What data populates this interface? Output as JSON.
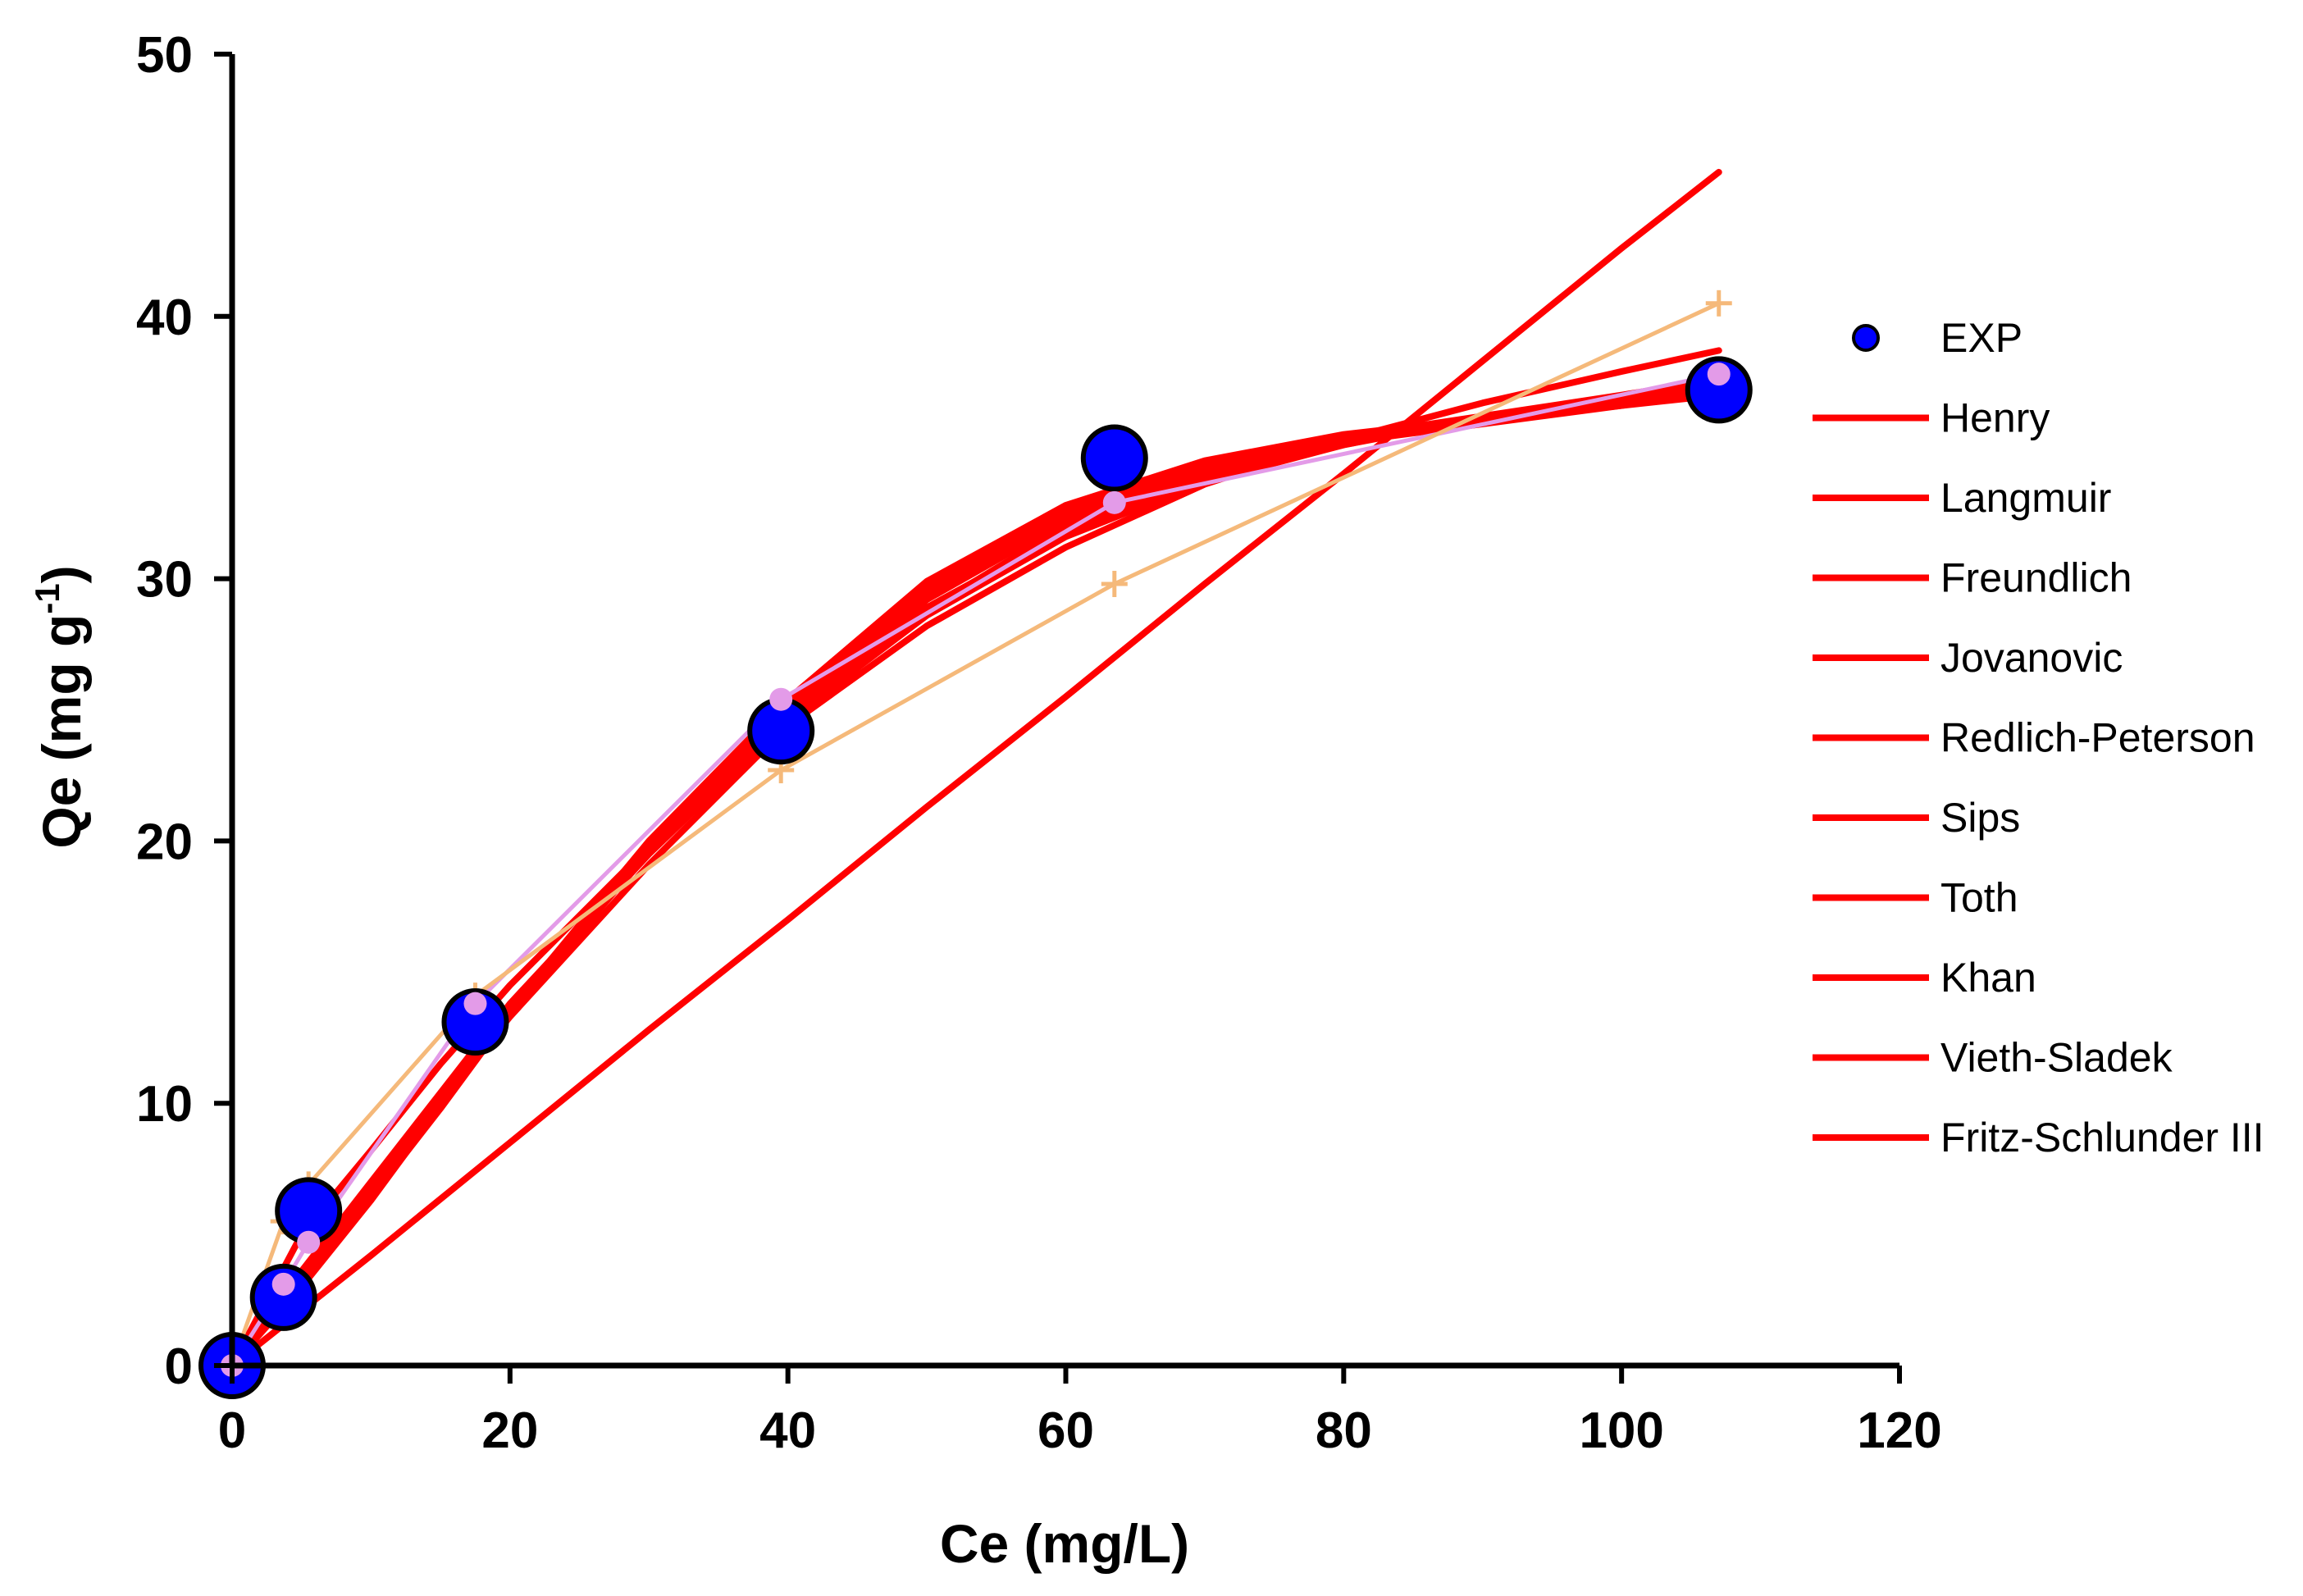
{
  "chart_data": {
    "type": "scatter",
    "title": "",
    "xlabel": "Ce (mg/L)",
    "ylabel_main": "Qe (mg g",
    "ylabel_sup": "-1",
    "ylabel_close": ")",
    "xlim": [
      0,
      120
    ],
    "ylim": [
      0,
      50
    ],
    "xticks": [
      0,
      20,
      40,
      60,
      80,
      100,
      120
    ],
    "yticks": [
      0,
      10,
      20,
      30,
      40,
      50
    ],
    "xtick_labels": [
      "0",
      "20",
      "40",
      "60",
      "80",
      "100",
      "120"
    ],
    "ytick_labels": [
      "0",
      "10",
      "20",
      "30",
      "40",
      "50"
    ],
    "grid": false,
    "legend_placement": "right",
    "colors": {
      "exp_fill": "#0000ff",
      "exp_edge": "#000000",
      "fit_line": "#ff0000",
      "pink_series": "#e39be8",
      "orange_series": "#f5b97a"
    },
    "series": [
      {
        "name": "EXP",
        "kind": "points",
        "x": [
          0,
          3.7,
          5.5,
          17.5,
          39.5,
          63.5,
          107
        ],
        "y": [
          0,
          2.6,
          5.9,
          13.1,
          24.2,
          34.6,
          37.2
        ]
      },
      {
        "name": "Henry",
        "kind": "line",
        "x": [
          0,
          10,
          20,
          30,
          40,
          50,
          60,
          70,
          80,
          90,
          100,
          107
        ],
        "y": [
          0,
          4.2,
          8.5,
          12.8,
          17.0,
          21.3,
          25.5,
          29.8,
          34.0,
          38.3,
          42.6,
          45.5
        ]
      },
      {
        "name": "Langmuir",
        "kind": "line",
        "x": [
          0,
          5,
          10,
          15,
          20,
          30,
          40,
          50,
          60,
          70,
          80,
          90,
          100,
          107
        ],
        "y": [
          0,
          3.4,
          6.7,
          10.0,
          13.3,
          19.1,
          24.4,
          28.8,
          32.0,
          34.1,
          35.4,
          36.2,
          36.8,
          37.3
        ]
      },
      {
        "name": "Freundlich",
        "kind": "line",
        "x": [
          0,
          5,
          10,
          15,
          20,
          30,
          40,
          50,
          60,
          70,
          80,
          90,
          100,
          107
        ],
        "y": [
          0,
          5.0,
          8.2,
          11.5,
          14.5,
          19.8,
          24.4,
          28.2,
          31.2,
          33.6,
          35.3,
          36.7,
          37.9,
          38.7
        ]
      },
      {
        "name": "Jovanovic",
        "kind": "line",
        "x": [
          0,
          5,
          10,
          15,
          20,
          30,
          40,
          50,
          60,
          70,
          80,
          90,
          100,
          107
        ],
        "y": [
          0,
          3.2,
          6.4,
          9.8,
          13.4,
          19.6,
          24.9,
          29.8,
          32.6,
          34.2,
          35.2,
          35.9,
          36.6,
          37.2
        ]
      },
      {
        "name": "Redlich-Peterson",
        "kind": "line",
        "x": [
          0,
          5,
          10,
          15,
          20,
          30,
          40,
          50,
          60,
          70,
          80,
          90,
          100,
          107
        ],
        "y": [
          0,
          3.6,
          7.0,
          10.4,
          13.8,
          19.5,
          24.6,
          28.6,
          31.6,
          33.7,
          35.1,
          36.2,
          37.0,
          37.6
        ]
      },
      {
        "name": "Sips",
        "kind": "line",
        "x": [
          0,
          5,
          10,
          15,
          20,
          30,
          40,
          50,
          60,
          70,
          80,
          90,
          100,
          107
        ],
        "y": [
          0,
          3.0,
          6.3,
          9.9,
          13.6,
          20.0,
          25.4,
          29.9,
          32.8,
          34.5,
          35.5,
          36.1,
          36.7,
          37.1
        ]
      },
      {
        "name": "Toth",
        "kind": "line",
        "x": [
          0,
          5,
          10,
          15,
          20,
          30,
          40,
          50,
          60,
          70,
          80,
          90,
          100,
          107
        ],
        "y": [
          0,
          3.3,
          6.6,
          10.1,
          13.5,
          19.7,
          25.0,
          29.4,
          32.3,
          34.0,
          35.2,
          36.0,
          36.7,
          37.2
        ]
      },
      {
        "name": "Khan",
        "kind": "line",
        "x": [
          0,
          5,
          10,
          15,
          20,
          30,
          40,
          50,
          60,
          70,
          80,
          90,
          100,
          107
        ],
        "y": [
          0,
          3.5,
          6.9,
          10.3,
          13.7,
          19.6,
          24.7,
          28.9,
          31.8,
          33.8,
          35.1,
          36.1,
          36.9,
          37.5
        ]
      },
      {
        "name": "Vieth-Sladek",
        "kind": "line",
        "x": [
          0,
          5,
          10,
          15,
          20,
          30,
          40,
          50,
          60,
          70,
          80,
          90,
          100,
          107
        ],
        "y": [
          0,
          3.1,
          6.5,
          10.0,
          13.5,
          19.8,
          25.1,
          29.6,
          32.5,
          34.3,
          35.4,
          36.0,
          36.6,
          37.0
        ]
      },
      {
        "name": "Fritz-Schlunder III",
        "kind": "line",
        "x": [
          0,
          5,
          10,
          15,
          20,
          30,
          40,
          50,
          60,
          70,
          80,
          90,
          100,
          107
        ],
        "y": [
          0,
          3.4,
          6.8,
          10.2,
          13.6,
          19.7,
          24.8,
          29.2,
          32.2,
          34.0,
          35.2,
          36.1,
          36.8,
          37.4
        ]
      },
      {
        "kind": "pink",
        "x": [
          0,
          3.7,
          5.5,
          17.5,
          39.5,
          63.5,
          107
        ],
        "y": [
          0,
          3.1,
          4.7,
          13.8,
          25.4,
          32.9,
          37.8
        ]
      },
      {
        "kind": "orange",
        "x": [
          0,
          3.7,
          5.5,
          17.5,
          39.5,
          63.5,
          107
        ],
        "y": [
          0,
          5.5,
          6.9,
          14.1,
          22.7,
          29.8,
          40.5
        ]
      }
    ]
  }
}
